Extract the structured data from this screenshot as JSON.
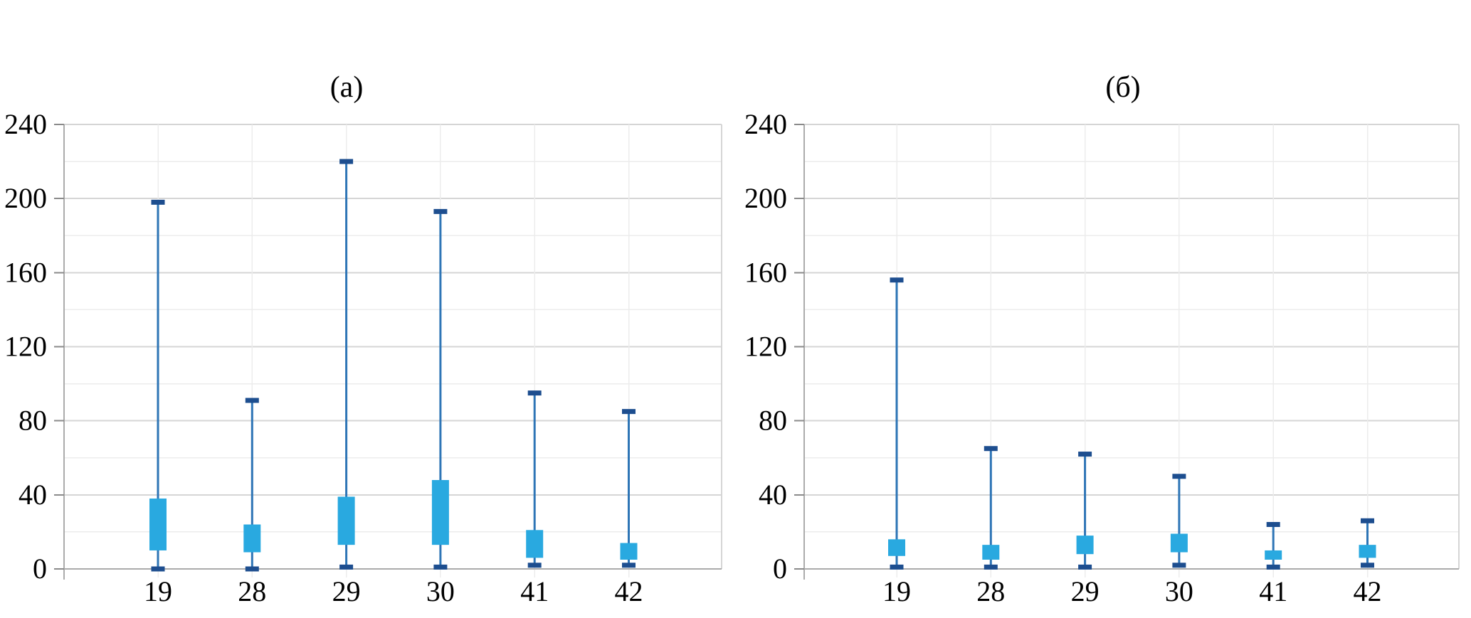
{
  "figure": {
    "titles": {
      "left": "(а)",
      "right": "(б)"
    }
  },
  "style": {
    "box_fill": "#29a9e0",
    "whisker_line": "#2e75b6",
    "whisker_cap": "#1d4e8f",
    "grid_major": "#d5d5d5",
    "grid_minor": "#ececec",
    "axis_line": "#ababab",
    "tick_color": "#8a8a8a",
    "text_color": "#000000"
  },
  "chart_data": [
    {
      "type": "boxplot",
      "title": "(а)",
      "categories": [
        "19",
        "28",
        "29",
        "30",
        "41",
        "42"
      ],
      "xlabel": "",
      "ylabel": "",
      "ylim": [
        0,
        240
      ],
      "yticks": [
        0,
        40,
        80,
        120,
        160,
        200,
        240
      ],
      "gridline_step": 20,
      "grid": true,
      "legend": null,
      "median_shown": false,
      "series": [
        {
          "category": "19",
          "whisker_low": 0,
          "box_low": 10,
          "box_high": 38,
          "whisker_high": 198
        },
        {
          "category": "28",
          "whisker_low": 0,
          "box_low": 9,
          "box_high": 24,
          "whisker_high": 91
        },
        {
          "category": "29",
          "whisker_low": 1,
          "box_low": 13,
          "box_high": 39,
          "whisker_high": 220
        },
        {
          "category": "30",
          "whisker_low": 1,
          "box_low": 13,
          "box_high": 48,
          "whisker_high": 193
        },
        {
          "category": "41",
          "whisker_low": 2,
          "box_low": 6,
          "box_high": 21,
          "whisker_high": 95
        },
        {
          "category": "42",
          "whisker_low": 2,
          "box_low": 5,
          "box_high": 14,
          "whisker_high": 85
        }
      ]
    },
    {
      "type": "boxplot",
      "title": "(б)",
      "categories": [
        "19",
        "28",
        "29",
        "30",
        "41",
        "42"
      ],
      "xlabel": "",
      "ylabel": "",
      "ylim": [
        0,
        240
      ],
      "yticks": [
        0,
        40,
        80,
        120,
        160,
        200,
        240
      ],
      "gridline_step": 20,
      "grid": true,
      "legend": null,
      "median_shown": false,
      "series": [
        {
          "category": "19",
          "whisker_low": 1,
          "box_low": 7,
          "box_high": 16,
          "whisker_high": 156
        },
        {
          "category": "28",
          "whisker_low": 1,
          "box_low": 5,
          "box_high": 13,
          "whisker_high": 65
        },
        {
          "category": "29",
          "whisker_low": 1,
          "box_low": 8,
          "box_high": 18,
          "whisker_high": 62
        },
        {
          "category": "30",
          "whisker_low": 2,
          "box_low": 9,
          "box_high": 19,
          "whisker_high": 50
        },
        {
          "category": "41",
          "whisker_low": 1,
          "box_low": 5,
          "box_high": 10,
          "whisker_high": 24
        },
        {
          "category": "42",
          "whisker_low": 2,
          "box_low": 6,
          "box_high": 13,
          "whisker_high": 26
        }
      ]
    }
  ]
}
